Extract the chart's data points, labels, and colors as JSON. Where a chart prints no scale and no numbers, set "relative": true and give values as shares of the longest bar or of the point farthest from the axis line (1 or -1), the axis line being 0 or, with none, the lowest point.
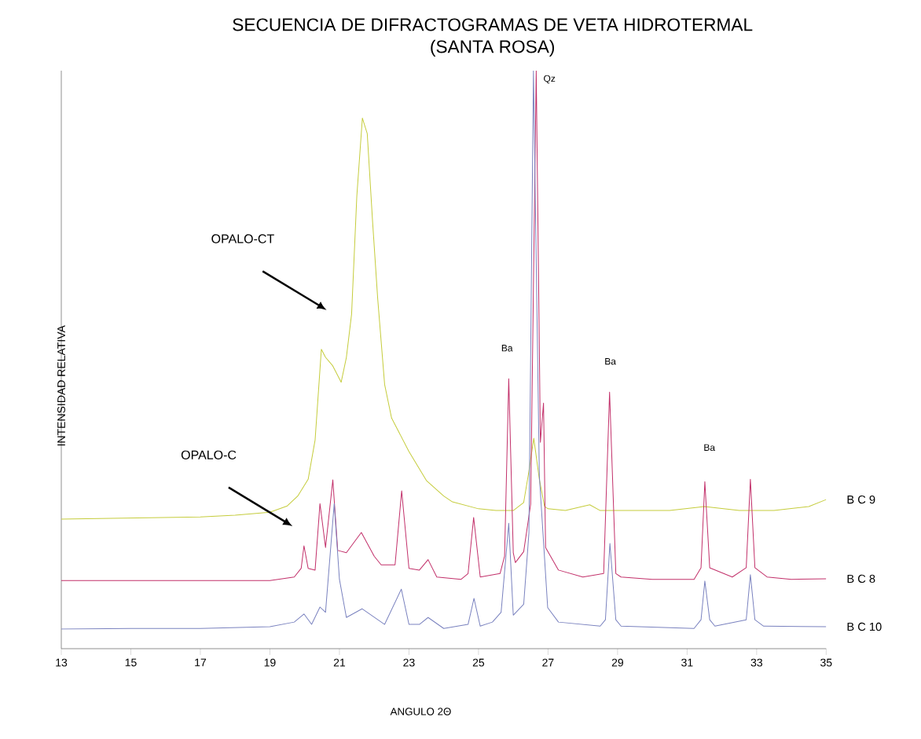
{
  "chart_data": {
    "type": "line",
    "relative": true,
    "title": "SECUENCIA DE DIFRACTOGRAMAS DE VETA HIDROTERMAL",
    "subtitle": "(SANTA ROSA)",
    "xlabel": "ANGULO 2Θ",
    "ylabel": "INTENSIDAD RELATIVA",
    "xlim": [
      13,
      35
    ],
    "xticks": [
      13,
      15,
      17,
      19,
      21,
      23,
      25,
      27,
      29,
      31,
      33,
      35
    ],
    "series": [
      {
        "name": "B C 9",
        "color": "#c5cc3c",
        "x": [
          13,
          15,
          17,
          18,
          19,
          19.5,
          19.8,
          20.1,
          20.3,
          20.48,
          20.6,
          20.8,
          21.05,
          21.2,
          21.35,
          21.5,
          21.66,
          21.8,
          21.95,
          22.1,
          22.3,
          22.5,
          23.0,
          23.5,
          24.0,
          24.25,
          25.0,
          25.5,
          26.0,
          26.3,
          26.45,
          26.59,
          26.75,
          26.9,
          27.0,
          27.5,
          28.2,
          28.5,
          29.5,
          30.5,
          31.5,
          32.5,
          33.5,
          34.5,
          35
        ],
        "values": [
          0.224,
          0.226,
          0.228,
          0.231,
          0.236,
          0.247,
          0.264,
          0.293,
          0.361,
          0.518,
          0.504,
          0.49,
          0.461,
          0.504,
          0.579,
          0.783,
          0.918,
          0.891,
          0.742,
          0.606,
          0.457,
          0.399,
          0.341,
          0.291,
          0.264,
          0.254,
          0.242,
          0.239,
          0.239,
          0.253,
          0.307,
          0.364,
          0.293,
          0.246,
          0.242,
          0.239,
          0.249,
          0.239,
          0.239,
          0.239,
          0.246,
          0.239,
          0.239,
          0.246,
          0.258
        ]
      },
      {
        "name": "B C 8",
        "color": "#c2306a",
        "x": [
          13,
          15,
          17,
          19,
          19.7,
          19.9,
          19.98,
          20.1,
          20.3,
          20.44,
          20.6,
          20.81,
          20.95,
          21.2,
          21.63,
          22.0,
          22.2,
          22.6,
          22.79,
          23.0,
          23.3,
          23.55,
          23.8,
          24.5,
          24.7,
          24.86,
          25.05,
          25.62,
          25.75,
          25.87,
          26.0,
          26.06,
          26.3,
          26.5,
          26.66,
          26.78,
          26.87,
          26.93,
          27.3,
          28.0,
          28.6,
          28.77,
          28.95,
          29.1,
          30,
          31.2,
          31.4,
          31.51,
          31.65,
          32.3,
          32.7,
          32.82,
          32.95,
          33.3,
          34,
          35
        ],
        "values": [
          0.118,
          0.118,
          0.118,
          0.118,
          0.124,
          0.139,
          0.178,
          0.139,
          0.136,
          0.251,
          0.175,
          0.292,
          0.17,
          0.166,
          0.201,
          0.16,
          0.145,
          0.145,
          0.273,
          0.139,
          0.136,
          0.154,
          0.124,
          0.12,
          0.13,
          0.227,
          0.124,
          0.13,
          0.16,
          0.467,
          0.166,
          0.149,
          0.168,
          0.25,
          1.0,
          0.357,
          0.425,
          0.175,
          0.136,
          0.124,
          0.13,
          0.444,
          0.13,
          0.124,
          0.12,
          0.12,
          0.14,
          0.289,
          0.14,
          0.124,
          0.14,
          0.293,
          0.14,
          0.124,
          0.12,
          0.121
        ]
      },
      {
        "name": "B C 10",
        "color": "#7a82bf",
        "x": [
          13,
          15,
          17,
          19,
          19.7,
          19.98,
          20.2,
          20.44,
          20.6,
          20.85,
          21.0,
          21.2,
          21.65,
          22.3,
          22.78,
          23.0,
          23.3,
          23.55,
          24.0,
          24.7,
          24.87,
          25.05,
          25.4,
          25.65,
          25.87,
          26.0,
          26.3,
          26.45,
          26.58,
          26.75,
          26.99,
          27.3,
          28.5,
          28.65,
          28.78,
          28.95,
          29.1,
          31.2,
          31.4,
          31.51,
          31.65,
          31.8,
          32.7,
          32.82,
          32.95,
          33.2,
          35
        ],
        "values": [
          0.034,
          0.035,
          0.035,
          0.038,
          0.046,
          0.06,
          0.042,
          0.072,
          0.063,
          0.251,
          0.12,
          0.054,
          0.069,
          0.042,
          0.103,
          0.042,
          0.042,
          0.054,
          0.035,
          0.042,
          0.087,
          0.039,
          0.046,
          0.063,
          0.217,
          0.058,
          0.077,
          0.2,
          1.0,
          0.299,
          0.071,
          0.046,
          0.039,
          0.05,
          0.182,
          0.05,
          0.039,
          0.035,
          0.05,
          0.117,
          0.05,
          0.039,
          0.05,
          0.128,
          0.05,
          0.039,
          0.038
        ]
      }
    ],
    "annotations": [
      "OPALO-CT",
      "OPALO-C",
      "Ba",
      "Ba",
      "Ba",
      "Qz"
    ]
  }
}
